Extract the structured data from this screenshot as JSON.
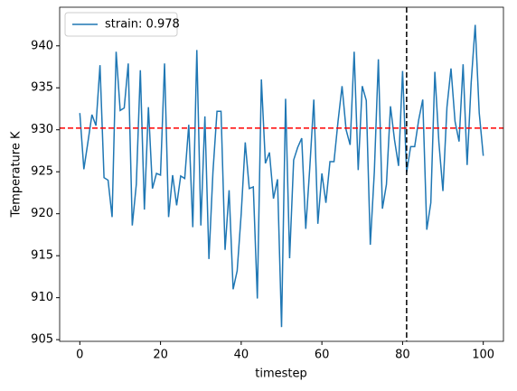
{
  "chart_data": {
    "type": "line",
    "x_label": "timestep",
    "y_label": "Temperature K",
    "x": [
      0,
      1,
      2,
      3,
      4,
      5,
      6,
      7,
      8,
      9,
      10,
      11,
      12,
      13,
      14,
      15,
      16,
      17,
      18,
      19,
      20,
      21,
      22,
      23,
      24,
      25,
      26,
      27,
      28,
      29,
      30,
      31,
      32,
      33,
      34,
      35,
      36,
      37,
      38,
      39,
      40,
      41,
      42,
      43,
      44,
      45,
      46,
      47,
      48,
      49,
      50,
      51,
      52,
      53,
      54,
      55,
      56,
      57,
      58,
      59,
      60,
      61,
      62,
      63,
      64,
      65,
      66,
      67,
      68,
      69,
      70,
      71,
      72,
      73,
      74,
      75,
      76,
      77,
      78,
      79,
      80,
      81,
      82,
      83,
      84,
      85,
      86,
      87,
      88,
      89,
      90,
      91,
      92,
      93,
      94,
      95,
      96,
      97,
      98,
      99,
      100
    ],
    "series": [
      {
        "name": "strain: 0.978",
        "color": "#1f77b4",
        "values": [
          932,
          925.3,
          928.5,
          931.8,
          930.5,
          937.7,
          924.3,
          924,
          919.6,
          939.3,
          932.3,
          932.6,
          937.9,
          918.6,
          923.5,
          937.1,
          920.5,
          932.7,
          923,
          924.8,
          924.6,
          937.9,
          919.6,
          924.6,
          921,
          924.5,
          924.2,
          930.6,
          918.4,
          939.5,
          918.6,
          931.6,
          914.6,
          925,
          932.2,
          932.2,
          915.7,
          922.8,
          911,
          913.2,
          920,
          928.5,
          923,
          923.2,
          909.9,
          936,
          926,
          927.3,
          921.8,
          924.1,
          906.5,
          933.7,
          914.7,
          926.4,
          927.9,
          929,
          918.2,
          925.5,
          933.6,
          918.8,
          924.8,
          921.3,
          926.2,
          926.2,
          931,
          935.2,
          930,
          928.2,
          939.3,
          925.2,
          935.2,
          933.5,
          916.3,
          925,
          938.4,
          920.6,
          923.5,
          932.8,
          928.8,
          925.7,
          937,
          924.9,
          928,
          928,
          931.2,
          933.6,
          918.1,
          921.3,
          936.9,
          928.5,
          922.7,
          932.7,
          937.3,
          931,
          928.6,
          937.8,
          925.8,
          935.6,
          942.5,
          932,
          926.9
        ]
      }
    ],
    "hline": {
      "value": 930.2,
      "color": "red"
    },
    "vline": {
      "value": 81,
      "color": "black"
    },
    "xlim": [
      -5,
      105
    ],
    "ylim": [
      904.8,
      944.6
    ],
    "xticks": [
      0,
      20,
      40,
      60,
      80,
      100
    ],
    "yticks": [
      905,
      910,
      915,
      920,
      925,
      930,
      935,
      940
    ],
    "legend": "upper left"
  }
}
